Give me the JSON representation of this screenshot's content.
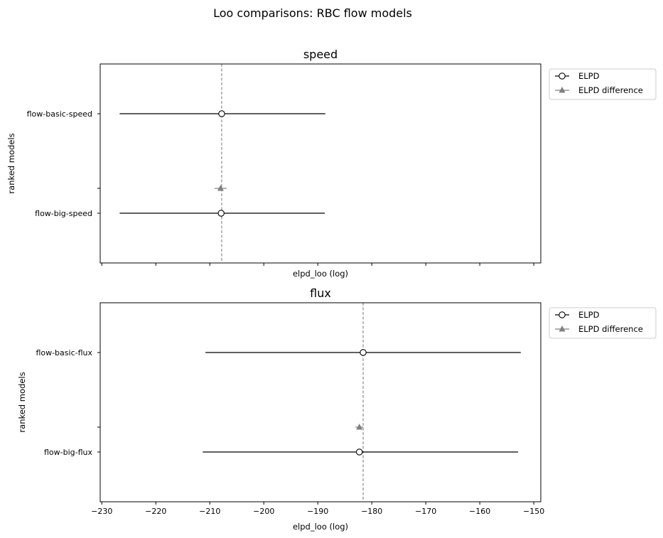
{
  "figure": {
    "title": "Loo comparisons: RBC flow models",
    "legend": {
      "elpd": "ELPD",
      "diff": "ELPD difference"
    },
    "colors": {
      "line": "#000000",
      "ref": "#808080",
      "diff": "#808080",
      "marker_fill": "#ffffff"
    }
  },
  "chart_data": [
    {
      "type": "scatter",
      "title": "speed",
      "xlabel": "elpd_loo (log)",
      "ylabel": "ranked models",
      "xlim": [
        -230.3,
        -148.7
      ],
      "xticks": [
        -230,
        -220,
        -210,
        -200,
        -190,
        -180,
        -170,
        -160,
        -150
      ],
      "show_xtick_labels": false,
      "legend": "upper-right-outside",
      "grid": false,
      "reference_line": -207.8,
      "models": [
        {
          "name": "flow-basic-speed",
          "elpd": -207.8,
          "se_low": -226.7,
          "se_high": -188.6
        },
        {
          "name": "flow-big-speed",
          "elpd": -207.9,
          "se_low": -226.7,
          "se_high": -188.7
        }
      ],
      "diffs": [
        {
          "value": -208.0,
          "se_low": -209.1,
          "se_high": -206.9
        }
      ]
    },
    {
      "type": "scatter",
      "title": "flux",
      "xlabel": "elpd_loo (log)",
      "ylabel": "ranked models",
      "xlim": [
        -230.3,
        -148.7
      ],
      "xticks": [
        -230,
        -220,
        -210,
        -200,
        -190,
        -180,
        -170,
        -160,
        -150
      ],
      "xtick_labels": [
        "−230",
        "−220",
        "−210",
        "−200",
        "−190",
        "−180",
        "−170",
        "−160",
        "−150"
      ],
      "show_xtick_labels": true,
      "legend": "upper-right-outside",
      "grid": false,
      "reference_line": -181.6,
      "models": [
        {
          "name": "flow-basic-flux",
          "elpd": -181.6,
          "se_low": -210.8,
          "se_high": -152.4
        },
        {
          "name": "flow-big-flux",
          "elpd": -182.3,
          "se_low": -211.3,
          "se_high": -152.9
        }
      ],
      "diffs": [
        {
          "value": -182.3,
          "se_low": -183.0,
          "se_high": -181.6
        }
      ]
    }
  ]
}
